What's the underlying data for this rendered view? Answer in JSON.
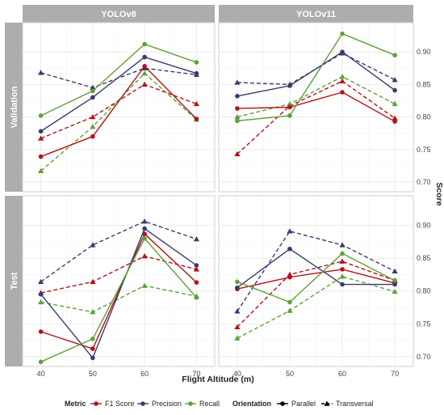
{
  "chart_data": {
    "type": "line",
    "x_label": "Flight Altitude (m)",
    "y_label": "Score",
    "x": [
      40,
      50,
      60,
      70
    ],
    "x_ticks": [
      "40",
      "50",
      "60",
      "70"
    ],
    "y_ticks": [
      "0.70",
      "0.75",
      "0.80",
      "0.85",
      "0.90"
    ],
    "ylim": [
      0.685,
      0.945
    ],
    "grid": true,
    "legend_position": "bottom",
    "columns": [
      "YOLOv8",
      "YOLOv11"
    ],
    "rows": [
      "Validation",
      "Test"
    ],
    "metric_legend": {
      "title": "Metric",
      "items": [
        {
          "name": "F1 Score",
          "color": "#b5121b"
        },
        {
          "name": "Precision",
          "color": "#3b3b6d"
        },
        {
          "name": "Recall",
          "color": "#5fa138"
        }
      ]
    },
    "orientation_legend": {
      "title": "Orientation",
      "items": [
        {
          "name": "Parallel",
          "linetype": "solid",
          "marker": "circle"
        },
        {
          "name": "Transversal",
          "linetype": "dashed",
          "marker": "triangle"
        }
      ]
    },
    "panels": [
      {
        "column": "YOLOv8",
        "row": "Validation",
        "series": [
          {
            "metric": "F1 Score",
            "orientation": "Parallel",
            "values": [
              0.739,
              0.77,
              0.878,
              0.797
            ]
          },
          {
            "metric": "F1 Score",
            "orientation": "Transversal",
            "values": [
              0.767,
              0.8,
              0.85,
              0.82
            ]
          },
          {
            "metric": "Precision",
            "orientation": "Parallel",
            "values": [
              0.778,
              0.83,
              0.892,
              0.867
            ]
          },
          {
            "metric": "Precision",
            "orientation": "Transversal",
            "values": [
              0.868,
              0.845,
              0.875,
              0.865
            ]
          },
          {
            "metric": "Recall",
            "orientation": "Parallel",
            "values": [
              0.802,
              0.84,
              0.912,
              0.884
            ]
          },
          {
            "metric": "Recall",
            "orientation": "Transversal",
            "values": [
              0.717,
              0.785,
              0.867,
              0.796
            ]
          }
        ]
      },
      {
        "column": "YOLOv11",
        "row": "Validation",
        "series": [
          {
            "metric": "F1 Score",
            "orientation": "Parallel",
            "values": [
              0.813,
              0.815,
              0.838,
              0.793
            ]
          },
          {
            "metric": "F1 Score",
            "orientation": "Transversal",
            "values": [
              0.743,
              0.817,
              0.855,
              0.798
            ]
          },
          {
            "metric": "Precision",
            "orientation": "Parallel",
            "values": [
              0.832,
              0.848,
              0.9,
              0.841
            ]
          },
          {
            "metric": "Precision",
            "orientation": "Transversal",
            "values": [
              0.853,
              0.85,
              0.898,
              0.857
            ]
          },
          {
            "metric": "Recall",
            "orientation": "Parallel",
            "values": [
              0.794,
              0.802,
              0.928,
              0.895
            ]
          },
          {
            "metric": "Recall",
            "orientation": "Transversal",
            "values": [
              0.8,
              0.82,
              0.862,
              0.82
            ]
          }
        ]
      },
      {
        "column": "YOLOv8",
        "row": "Test",
        "series": [
          {
            "metric": "F1 Score",
            "orientation": "Parallel",
            "values": [
              0.738,
              0.712,
              0.887,
              0.813
            ]
          },
          {
            "metric": "F1 Score",
            "orientation": "Transversal",
            "values": [
              0.797,
              0.814,
              0.853,
              0.833
            ]
          },
          {
            "metric": "Precision",
            "orientation": "Parallel",
            "values": [
              0.795,
              0.698,
              0.895,
              0.839
            ]
          },
          {
            "metric": "Precision",
            "orientation": "Transversal",
            "values": [
              0.814,
              0.87,
              0.906,
              0.879
            ]
          },
          {
            "metric": "Recall",
            "orientation": "Parallel",
            "values": [
              0.692,
              0.727,
              0.88,
              0.79
            ]
          },
          {
            "metric": "Recall",
            "orientation": "Transversal",
            "values": [
              0.783,
              0.768,
              0.808,
              0.792
            ]
          }
        ]
      },
      {
        "column": "YOLOv11",
        "row": "Test",
        "series": [
          {
            "metric": "F1 Score",
            "orientation": "Parallel",
            "values": [
              0.803,
              0.821,
              0.833,
              0.812
            ]
          },
          {
            "metric": "F1 Score",
            "orientation": "Transversal",
            "values": [
              0.745,
              0.825,
              0.845,
              0.816
            ]
          },
          {
            "metric": "Precision",
            "orientation": "Parallel",
            "values": [
              0.805,
              0.864,
              0.81,
              0.81
            ]
          },
          {
            "metric": "Precision",
            "orientation": "Transversal",
            "values": [
              0.769,
              0.891,
              0.87,
              0.83
            ]
          },
          {
            "metric": "Recall",
            "orientation": "Parallel",
            "values": [
              0.814,
              0.783,
              0.857,
              0.816
            ]
          },
          {
            "metric": "Recall",
            "orientation": "Transversal",
            "values": [
              0.728,
              0.77,
              0.822,
              0.799
            ]
          }
        ]
      }
    ]
  }
}
